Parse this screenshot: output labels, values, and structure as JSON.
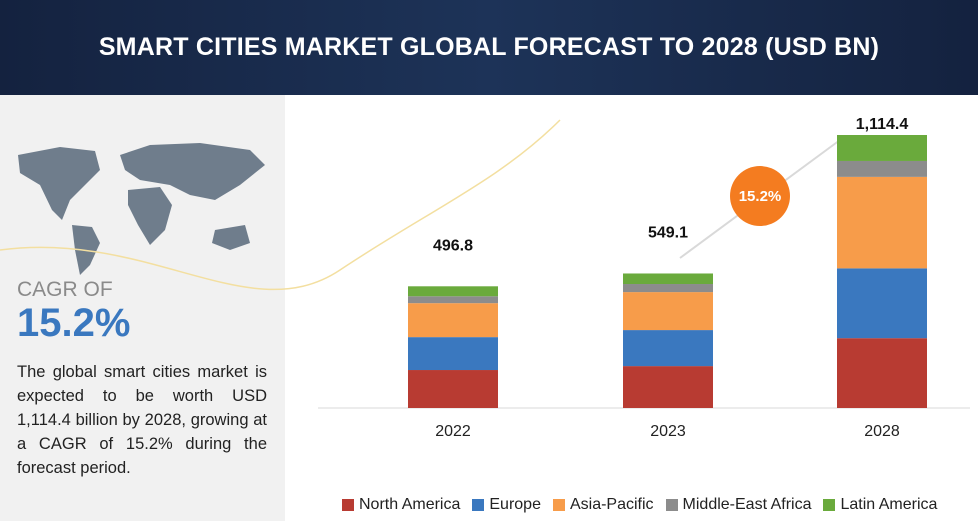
{
  "header": {
    "title": "SMART CITIES MARKET GLOBAL FORECAST TO 2028 (USD BN)"
  },
  "sidebar": {
    "cagr_label": "CAGR OF",
    "cagr_value": "15.2%",
    "description": "The global smart cities market is expected to be worth USD 1,114.4 billion by 2028, growing at a CAGR of 15.2% during the forecast period."
  },
  "chart_data": {
    "type": "bar",
    "stacked": true,
    "categories": [
      "2022",
      "2023",
      "2028"
    ],
    "series": [
      {
        "name": "North America",
        "color": "#b83b32",
        "values": [
          155.0,
          171.0,
          285.0
        ]
      },
      {
        "name": "Europe",
        "color": "#3a78bf",
        "values": [
          134.3,
          147.1,
          285.0
        ]
      },
      {
        "name": "Asia-Pacific",
        "color": "#f79c4a",
        "values": [
          138.6,
          155.0,
          373.4
        ]
      },
      {
        "name": "Middle-East Africa",
        "color": "#8c8c8c",
        "values": [
          28.2,
          33.0,
          65.0
        ]
      },
      {
        "name": "Latin America",
        "color": "#6aaa3c",
        "values": [
          40.7,
          43.0,
          106.0
        ]
      }
    ],
    "totals": [
      496.8,
      549.1,
      1114.4
    ],
    "total_labels": [
      "496.8",
      "549.1",
      "1,114.4"
    ],
    "annotation": "15.2%"
  }
}
